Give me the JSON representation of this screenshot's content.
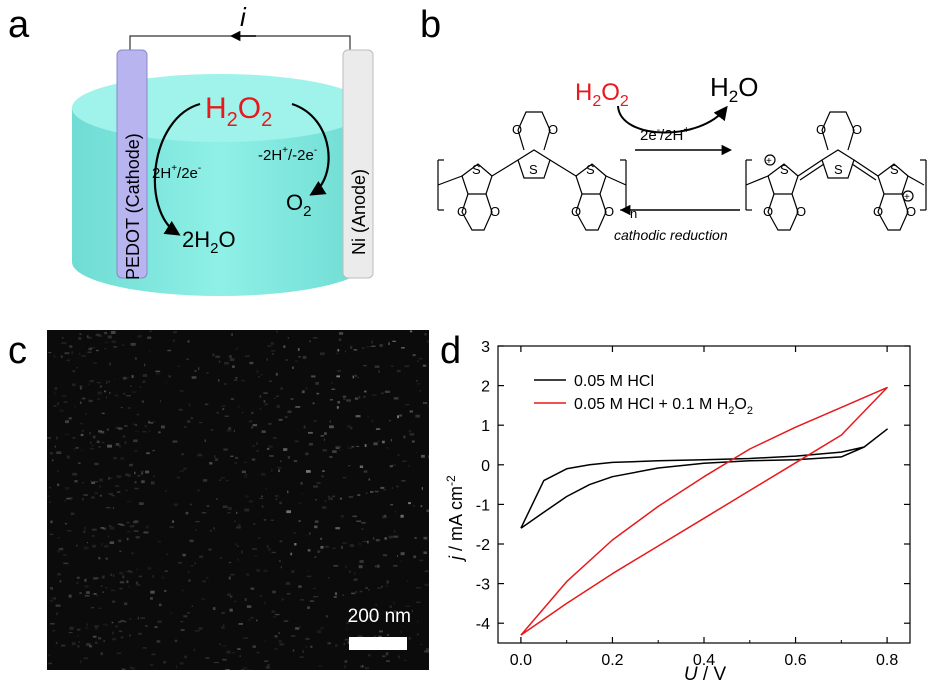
{
  "panels": {
    "a": "a",
    "b": "b",
    "c": "c",
    "d": "d"
  },
  "panel_a": {
    "current": "i",
    "cathode": "PEDOT (Cathode)",
    "anode": "Ni (Anode)",
    "reactant": {
      "main": "H",
      "sub": "2",
      "main2": "O",
      "sub2": "2"
    },
    "cathode_step": {
      "a": "2H",
      "sup": "+",
      "b": "/2e",
      "sup2": "-"
    },
    "anode_step": {
      "a": "-2H",
      "sup": "+",
      "b": "/-2e",
      "sup2": "-"
    },
    "product_cathode": {
      "a": "2H",
      "sub": "2",
      "b": "O"
    },
    "product_anode": {
      "a": "O",
      "sub": "2"
    },
    "colors": {
      "cylinder": "#7fe7de",
      "cathode": "#b7b4f0",
      "anode": "#ebebeb",
      "reactant": "#e8191c"
    }
  },
  "panel_b": {
    "reactant": {
      "a": "H",
      "sub": "2",
      "b": "O",
      "sub2": "2"
    },
    "product": {
      "a": "H",
      "sub": "2",
      "b": "O"
    },
    "electrons": {
      "a": "2e",
      "sup": "-",
      "b": "/2H",
      "sup2": "+"
    },
    "reduction": "cathodic reduction",
    "atom_s": "S",
    "atom_o": "O",
    "repeat": "n",
    "charge": "+"
  },
  "panel_c": {
    "scale_label": "200 nm"
  },
  "chart_data": {
    "type": "line",
    "xlabel_var": "U",
    "xlabel_unit": " / V",
    "ylabel_var": "j",
    "ylabel_unit": " / mA cm",
    "ylabel_sup": "-2",
    "xlim": [
      -0.05,
      0.85
    ],
    "ylim": [
      -4.5,
      3
    ],
    "xticks": [
      "0.0",
      "0.2",
      "0.4",
      "0.6",
      "0.8"
    ],
    "xtick_values": [
      0,
      0.2,
      0.4,
      0.6,
      0.8
    ],
    "yticks": [
      "-4",
      "-3",
      "-2",
      "-1",
      "0",
      "1",
      "2",
      "3"
    ],
    "ytick_values": [
      -4,
      -3,
      -2,
      -1,
      0,
      1,
      2,
      3
    ],
    "grid": false,
    "legend_position": "top-left",
    "series": [
      {
        "name": "0.05 M HCl",
        "color": "#000000",
        "x": [
          0.0,
          0.05,
          0.1,
          0.15,
          0.2,
          0.3,
          0.4,
          0.5,
          0.6,
          0.7,
          0.75,
          0.8,
          0.75,
          0.7,
          0.6,
          0.5,
          0.4,
          0.3,
          0.2,
          0.15,
          0.1,
          0.05,
          0.0
        ],
        "y": [
          -1.6,
          -1.2,
          -0.8,
          -0.5,
          -0.3,
          -0.08,
          0.04,
          0.1,
          0.13,
          0.2,
          0.45,
          0.9,
          0.45,
          0.32,
          0.22,
          0.16,
          0.13,
          0.1,
          0.06,
          0.0,
          -0.1,
          -0.4,
          -1.6
        ]
      },
      {
        "name": "0.05 M HCl + 0.1 M H2O2",
        "name_parts": {
          "a": "0.05 M HCl + 0.1 M H",
          "sub": "2",
          "b": "O",
          "sub2": "2"
        },
        "color": "#e8191c",
        "x": [
          0.0,
          0.1,
          0.2,
          0.3,
          0.4,
          0.5,
          0.6,
          0.7,
          0.8,
          0.7,
          0.6,
          0.5,
          0.4,
          0.3,
          0.2,
          0.1,
          0.0
        ],
        "y": [
          -4.3,
          -3.5,
          -2.75,
          -2.05,
          -1.35,
          -0.65,
          0.05,
          0.75,
          1.95,
          1.45,
          0.95,
          0.4,
          -0.3,
          -1.05,
          -1.9,
          -2.95,
          -4.3
        ]
      }
    ]
  }
}
